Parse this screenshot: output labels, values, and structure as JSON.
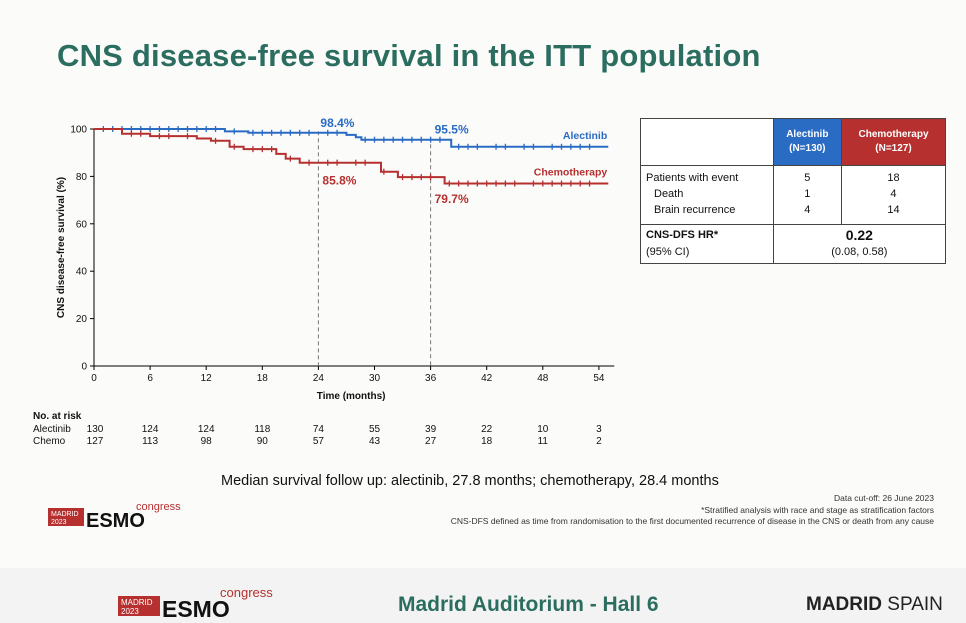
{
  "slide": {
    "title": "CNS disease-free survival in the ITT population",
    "median_text": "Median survival follow up: alectinib, 27.8 months; chemotherapy, 28.4 months",
    "footnotes": {
      "cutoff": "Data cut-off: 26 June 2023",
      "stratified": "*Stratified analysis with race and stage as stratification factors",
      "definition": "CNS-DFS defined as time from randomisation to the first documented recurrence of disease in the CNS or death from any cause"
    }
  },
  "logo": {
    "city": "MADRID",
    "year": "2023",
    "brand": "ESMO",
    "suffix": "congress"
  },
  "bottom": {
    "venue": "Madrid Auditorium - Hall 6",
    "city_bold": "MADRID",
    "country": "SPAIN"
  },
  "table": {
    "headers": [
      {
        "name": "Alectinib",
        "n": "(N=130)"
      },
      {
        "name": "Chemotherapy",
        "n": "(N=127)"
      }
    ],
    "rows": [
      {
        "label": "Patients with event",
        "alectinib": "5",
        "chemotherapy": "18"
      },
      {
        "label": "Death",
        "alectinib": "1",
        "chemotherapy": "4"
      },
      {
        "label": "Brain recurrence",
        "alectinib": "4",
        "chemotherapy": "14"
      }
    ],
    "hr_label": "CNS-DFS HR*",
    "ci_label": "(95% CI)",
    "hr_value": "0.22",
    "ci_value": "(0.08, 0.58)"
  },
  "chart_data": {
    "type": "line",
    "xlabel": "Time (months)",
    "ylabel": "CNS disease-free survival (%)",
    "xlim": [
      0,
      55
    ],
    "ylim": [
      0,
      100
    ],
    "xticks": [
      0,
      6,
      12,
      18,
      24,
      30,
      36,
      42,
      48,
      54
    ],
    "yticks": [
      0,
      20,
      40,
      60,
      80,
      100
    ],
    "colors": {
      "alectinib": "#2a6bc4",
      "chemotherapy": "#b5302f"
    },
    "series": [
      {
        "name": "Alectinib",
        "key": "alectinib",
        "steps": [
          [
            0,
            100
          ],
          [
            14,
            100
          ],
          [
            14,
            99
          ],
          [
            16.5,
            99
          ],
          [
            16.5,
            98.4
          ],
          [
            27,
            98.4
          ],
          [
            27,
            97.5
          ],
          [
            28,
            97.5
          ],
          [
            28,
            96.5
          ],
          [
            28.6,
            96.5
          ],
          [
            28.6,
            95.5
          ],
          [
            38.2,
            95.5
          ],
          [
            38.2,
            92.5
          ],
          [
            55,
            92.5
          ]
        ],
        "censors": [
          1,
          2,
          3,
          4,
          5,
          6,
          7,
          8,
          9,
          10,
          11,
          12,
          13,
          15,
          17,
          18,
          19,
          20,
          21,
          22,
          23,
          25,
          26,
          29,
          30,
          31,
          32,
          33,
          34,
          35,
          36,
          37,
          39,
          40,
          41,
          43,
          44,
          46,
          47,
          49,
          50,
          51,
          52,
          53
        ]
      },
      {
        "name": "Chemotherapy",
        "key": "chemotherapy",
        "steps": [
          [
            0,
            100
          ],
          [
            3,
            100
          ],
          [
            3,
            98
          ],
          [
            6,
            98
          ],
          [
            6,
            97
          ],
          [
            11,
            97
          ],
          [
            11,
            96
          ],
          [
            12.5,
            96
          ],
          [
            12.5,
            95
          ],
          [
            14.5,
            95
          ],
          [
            14.5,
            92.5
          ],
          [
            16,
            92.5
          ],
          [
            16,
            91.5
          ],
          [
            19.5,
            91.5
          ],
          [
            19.5,
            89.5
          ],
          [
            20.5,
            89.5
          ],
          [
            20.5,
            87.5
          ],
          [
            22,
            87.5
          ],
          [
            22,
            85.8
          ],
          [
            30.7,
            85.8
          ],
          [
            30.7,
            82
          ],
          [
            32.5,
            82
          ],
          [
            32.5,
            79.7
          ],
          [
            37.5,
            79.7
          ],
          [
            37.5,
            77
          ],
          [
            55,
            77
          ]
        ],
        "censors": [
          4,
          5,
          7,
          8,
          10,
          13,
          15,
          17,
          18,
          19,
          21,
          23,
          25,
          26,
          28,
          29,
          31,
          33,
          34,
          35,
          36,
          38,
          39,
          40,
          41,
          42,
          43,
          44,
          45,
          47,
          48,
          49,
          50,
          51,
          52,
          53
        ]
      }
    ],
    "annotations": [
      {
        "text": "98.4%",
        "series": "alectinib",
        "x": 24
      },
      {
        "text": "85.8%",
        "series": "chemotherapy",
        "x": 24
      },
      {
        "text": "95.5%",
        "series": "alectinib",
        "x": 36
      },
      {
        "text": "79.7%",
        "series": "chemotherapy",
        "x": 36
      }
    ],
    "reference_lines_x": [
      24,
      36
    ],
    "at_risk": {
      "title": "No. at risk",
      "rows": [
        {
          "label": "Alectinib",
          "values": [
            130,
            124,
            124,
            118,
            74,
            55,
            39,
            22,
            10,
            3
          ]
        },
        {
          "label": "Chemo",
          "values": [
            127,
            113,
            98,
            90,
            57,
            43,
            27,
            18,
            11,
            2
          ]
        }
      ]
    }
  }
}
